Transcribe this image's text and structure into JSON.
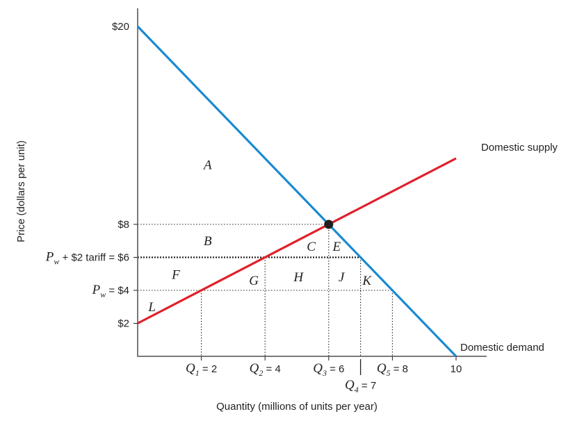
{
  "chart_data": {
    "type": "line",
    "xlabel": "Quantity (millions of units per year)",
    "ylabel": "Price (dollars per unit)",
    "xlim": [
      0,
      10
    ],
    "ylim": [
      0,
      20
    ],
    "grid": false,
    "series": [
      {
        "name": "Domestic supply",
        "color": "#e0202a",
        "x": [
          0,
          10
        ],
        "y": [
          2,
          12
        ]
      },
      {
        "name": "Domestic demand",
        "color": "#1a8ad0",
        "x": [
          0,
          10
        ],
        "y": [
          20,
          0
        ]
      }
    ],
    "equilibrium": {
      "x": 6,
      "y": 8
    },
    "y_ticks": [
      {
        "value": 20,
        "label": "$20"
      },
      {
        "value": 8,
        "label": "$8"
      },
      {
        "value": 6,
        "label": "tariff = $6",
        "prefix": "P",
        "prefix_sub": "w",
        "mid": " + $2 "
      },
      {
        "value": 4,
        "label": " = $4",
        "prefix": "P",
        "prefix_sub": "w"
      },
      {
        "value": 2,
        "label": "$2"
      }
    ],
    "x_ticks": [
      {
        "value": 2,
        "label": " = 2",
        "q": "Q",
        "q_sub": "1"
      },
      {
        "value": 4,
        "label": " = 4",
        "q": "Q",
        "q_sub": "2"
      },
      {
        "value": 6,
        "label": " = 6",
        "q": "Q",
        "q_sub": "3"
      },
      {
        "value": 8,
        "label": " = 8",
        "q": "Q",
        "q_sub": "5"
      },
      {
        "value": 10,
        "label": "10"
      }
    ],
    "x_tick_extra": {
      "value": 7,
      "label": " = 7",
      "q": "Q",
      "q_sub": "4"
    },
    "reference_lines": [
      {
        "price": 8,
        "x_end": 6,
        "style": "dotted"
      },
      {
        "price": 6,
        "x_end": 7,
        "style": "dotted-bold"
      },
      {
        "price": 4,
        "x_end": 8,
        "style": "dotted"
      }
    ],
    "vertical_lines": [
      {
        "x": 2,
        "y_top": 4
      },
      {
        "x": 4,
        "y_top": 6
      },
      {
        "x": 6,
        "y_top": 8
      },
      {
        "x": 7,
        "y_top": 6
      },
      {
        "x": 8,
        "y_top": 4
      }
    ],
    "area_labels": [
      {
        "label": "A",
        "x": 2.2,
        "y": 11.6
      },
      {
        "label": "B",
        "x": 2.2,
        "y": 7.0
      },
      {
        "label": "C",
        "x": 5.45,
        "y": 6.65
      },
      {
        "label": "E",
        "x": 6.25,
        "y": 6.65
      },
      {
        "label": "F",
        "x": 1.2,
        "y": 4.95
      },
      {
        "label": "G",
        "x": 3.65,
        "y": 4.6
      },
      {
        "label": "H",
        "x": 5.05,
        "y": 4.8
      },
      {
        "label": "J",
        "x": 6.4,
        "y": 4.8
      },
      {
        "label": "K",
        "x": 7.2,
        "y": 4.6
      },
      {
        "label": "L",
        "x": 0.45,
        "y": 3.0
      }
    ],
    "line_labels": {
      "supply": "Domestic supply",
      "demand": "Domestic demand"
    }
  }
}
